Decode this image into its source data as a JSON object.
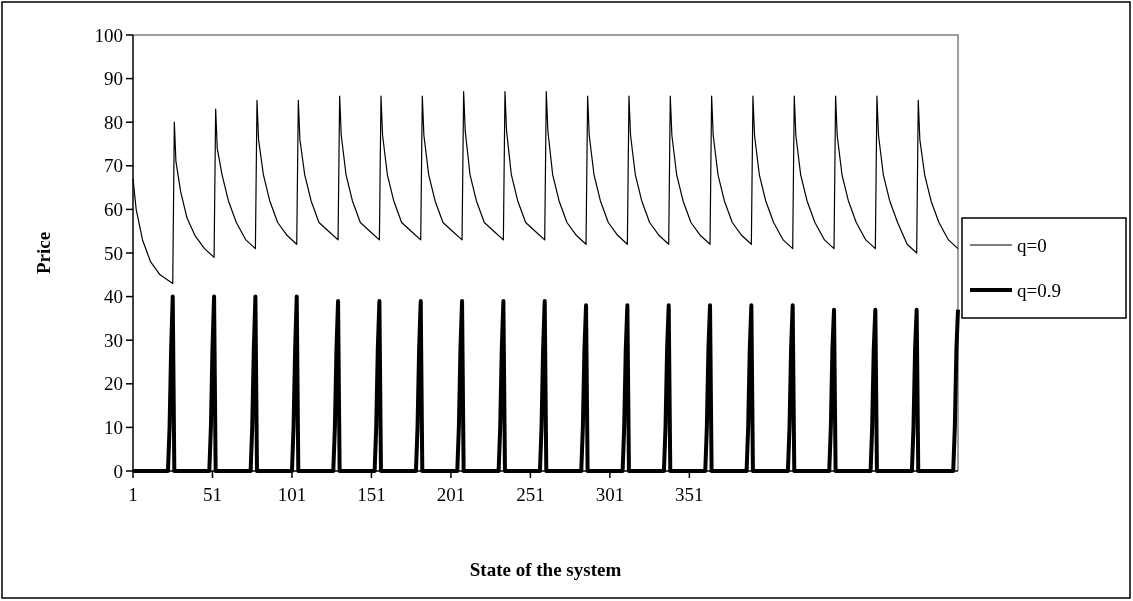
{
  "chart_data": {
    "type": "line",
    "xlabel": "State of the system",
    "ylabel": "Price",
    "xlim": [
      1,
      520
    ],
    "xticks": [
      1,
      51,
      101,
      151,
      201,
      251,
      301,
      351
    ],
    "ylim": [
      0,
      100
    ],
    "yticks": [
      0,
      10,
      20,
      30,
      40,
      50,
      60,
      70,
      80,
      90,
      100
    ],
    "grid": false,
    "legend": "right",
    "marker": "none",
    "line_style": "solid",
    "series": [
      {
        "name": "q=0",
        "color": "#000000",
        "x": [
          1,
          3,
          7,
          12,
          18,
          26,
          27,
          28,
          31,
          35,
          40,
          46,
          52,
          53,
          54,
          57,
          61,
          66,
          72,
          78,
          79,
          80,
          83,
          87,
          92,
          98,
          104,
          105,
          106,
          109,
          113,
          118,
          124,
          130,
          131,
          132,
          135,
          139,
          144,
          150,
          156,
          157,
          158,
          161,
          165,
          170,
          176,
          182,
          183,
          184,
          187,
          191,
          196,
          202,
          208,
          209,
          210,
          213,
          217,
          222,
          228,
          234,
          235,
          236,
          239,
          243,
          248,
          254,
          260,
          261,
          262,
          265,
          269,
          274,
          280,
          286,
          287,
          288,
          291,
          295,
          300,
          306,
          312,
          313,
          314,
          317,
          321,
          326,
          332,
          338,
          339,
          340,
          343,
          347,
          352,
          358,
          364,
          365,
          366,
          369,
          373,
          378,
          384,
          390,
          391,
          392,
          395,
          399,
          404,
          410,
          416,
          417,
          418,
          421,
          425,
          430,
          436,
          442,
          443,
          444,
          447,
          451,
          456,
          462,
          468,
          469,
          470,
          473,
          477,
          482,
          488,
          494,
          495,
          496,
          499,
          503,
          508,
          514,
          520
        ],
        "values": [
          67,
          60,
          53,
          48,
          45,
          43,
          80,
          71,
          64,
          58,
          54,
          51,
          49,
          83,
          74,
          68,
          62,
          57,
          53,
          51,
          85,
          76,
          68,
          62,
          57,
          54,
          52,
          85,
          76,
          68,
          62,
          57,
          55,
          53,
          86,
          77,
          68,
          62,
          57,
          55,
          53,
          86,
          77,
          68,
          62,
          57,
          55,
          53,
          86,
          77,
          68,
          62,
          57,
          55,
          53,
          87,
          78,
          68,
          62,
          57,
          55,
          53,
          87,
          78,
          68,
          62,
          57,
          55,
          53,
          87,
          78,
          68,
          62,
          57,
          54,
          52,
          86,
          77,
          68,
          62,
          57,
          54,
          52,
          86,
          77,
          68,
          62,
          57,
          54,
          52,
          86,
          77,
          68,
          62,
          57,
          54,
          52,
          86,
          77,
          68,
          62,
          57,
          54,
          52,
          86,
          77,
          68,
          62,
          57,
          53,
          51,
          86,
          77,
          68,
          62,
          57,
          53,
          51,
          86,
          77,
          68,
          62,
          57,
          53,
          51,
          86,
          77,
          68,
          62,
          57,
          52,
          50,
          85,
          76,
          68,
          62,
          57,
          53,
          51
        ]
      },
      {
        "name": "q=0.9",
        "color": "#000000",
        "x": [
          1,
          23,
          24,
          25,
          26,
          27,
          49,
          50,
          51,
          52,
          53,
          75,
          76,
          77,
          78,
          79,
          101,
          102,
          103,
          104,
          105,
          127,
          128,
          129,
          130,
          131,
          153,
          154,
          155,
          156,
          157,
          179,
          180,
          181,
          182,
          183,
          205,
          206,
          207,
          208,
          209,
          231,
          232,
          233,
          234,
          235,
          257,
          258,
          259,
          260,
          261,
          283,
          284,
          285,
          286,
          287,
          309,
          310,
          311,
          312,
          313,
          335,
          336,
          337,
          338,
          339,
          361,
          362,
          363,
          364,
          365,
          387,
          388,
          389,
          390,
          391,
          413,
          414,
          415,
          416,
          417,
          439,
          440,
          441,
          442,
          443,
          465,
          466,
          467,
          468,
          469,
          491,
          492,
          493,
          494,
          495,
          517,
          518,
          519,
          520
        ],
        "values": [
          0,
          0,
          10,
          28,
          40,
          0,
          0,
          10,
          28,
          40,
          0,
          0,
          10,
          28,
          40,
          0,
          0,
          10,
          28,
          40,
          0,
          0,
          10,
          28,
          39,
          0,
          0,
          10,
          28,
          39,
          0,
          0,
          10,
          28,
          39,
          0,
          0,
          10,
          28,
          39,
          0,
          0,
          10,
          28,
          39,
          0,
          0,
          10,
          28,
          39,
          0,
          0,
          10,
          28,
          38,
          0,
          0,
          10,
          28,
          38,
          0,
          0,
          10,
          28,
          38,
          0,
          0,
          10,
          28,
          38,
          0,
          0,
          10,
          28,
          38,
          0,
          0,
          10,
          28,
          38,
          0,
          0,
          10,
          28,
          37,
          0,
          0,
          10,
          28,
          37,
          0,
          0,
          10,
          28,
          37,
          0,
          0,
          10,
          28,
          37
        ]
      }
    ]
  }
}
